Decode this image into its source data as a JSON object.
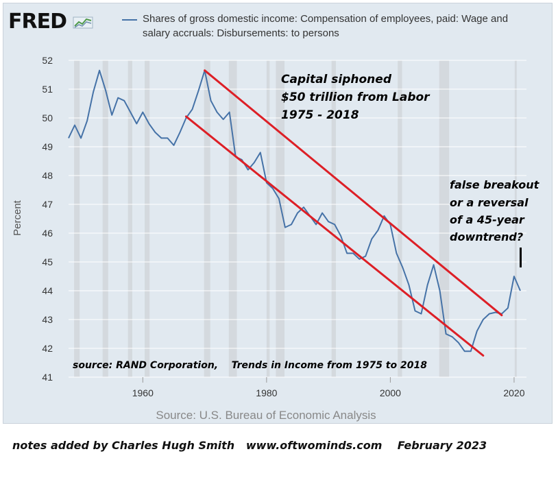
{
  "logo": {
    "text": "FRED"
  },
  "chart_data": {
    "type": "line",
    "title": "Shares of gross domestic income: Compensation of employees, paid: Wage and salary accruals: Disbursements: to persons",
    "ylabel": "Percent",
    "xlabel": "",
    "xlim": [
      1948,
      2022
    ],
    "ylim": [
      41,
      52
    ],
    "xticks": [
      1960,
      1980,
      2000,
      2020
    ],
    "yticks": [
      41,
      42,
      43,
      44,
      45,
      46,
      47,
      48,
      49,
      50,
      51,
      52
    ],
    "grid": "horizontal",
    "series_color": "#4572a7",
    "recessions": [
      [
        1948.9,
        1949.8
      ],
      [
        1953.5,
        1954.4
      ],
      [
        1957.6,
        1958.3
      ],
      [
        1960.3,
        1961.1
      ],
      [
        1969.9,
        1970.9
      ],
      [
        1973.9,
        1975.2
      ],
      [
        1980.0,
        1980.5
      ],
      [
        1981.5,
        1982.9
      ],
      [
        1990.5,
        1991.2
      ],
      [
        2001.2,
        2001.9
      ],
      [
        2007.9,
        2009.5
      ],
      [
        2020.1,
        2020.4
      ]
    ],
    "x": [
      1948,
      1949,
      1950,
      1951,
      1952,
      1953,
      1954,
      1955,
      1956,
      1957,
      1958,
      1959,
      1960,
      1961,
      1962,
      1963,
      1964,
      1965,
      1966,
      1967,
      1968,
      1969,
      1970,
      1971,
      1972,
      1973,
      1974,
      1975,
      1976,
      1977,
      1978,
      1979,
      1980,
      1981,
      1982,
      1983,
      1984,
      1985,
      1986,
      1987,
      1988,
      1989,
      1990,
      1991,
      1992,
      1993,
      1994,
      1995,
      1996,
      1997,
      1998,
      1999,
      2000,
      2001,
      2002,
      2003,
      2004,
      2005,
      2006,
      2007,
      2008,
      2009,
      2010,
      2011,
      2012,
      2013,
      2014,
      2015,
      2016,
      2017,
      2018,
      2019,
      2020,
      2021
    ],
    "values": [
      49.3,
      49.75,
      49.3,
      49.9,
      50.9,
      51.65,
      50.95,
      50.1,
      50.7,
      50.6,
      50.2,
      49.8,
      50.2,
      49.8,
      49.5,
      49.3,
      49.3,
      49.05,
      49.5,
      50.0,
      50.3,
      50.95,
      51.65,
      50.6,
      50.2,
      49.95,
      50.2,
      48.65,
      48.55,
      48.2,
      48.45,
      48.8,
      47.75,
      47.55,
      47.2,
      46.2,
      46.3,
      46.7,
      46.9,
      46.6,
      46.3,
      46.7,
      46.4,
      46.3,
      45.9,
      45.3,
      45.3,
      45.1,
      45.2,
      45.8,
      46.1,
      46.6,
      46.3,
      45.3,
      44.8,
      44.2,
      43.3,
      43.2,
      44.2,
      44.9,
      44.0,
      42.5,
      42.4,
      42.2,
      41.9,
      41.9,
      42.6,
      43.0,
      43.2,
      43.25,
      43.2,
      43.4,
      44.5,
      44.0
    ],
    "trendlines": [
      {
        "color": "#dd1f26",
        "from": [
          1970,
          51.65
        ],
        "to": [
          2018,
          43.15
        ]
      },
      {
        "color": "#dd1f26",
        "from": [
          1967,
          50.05
        ],
        "to": [
          2015,
          41.75
        ]
      }
    ],
    "annotations": {
      "capital": [
        "Capital siphoned",
        "$50 trillion from Labor",
        "1975 - 2018"
      ],
      "breakout": [
        "false breakout",
        "or a reversal",
        "of a 45-year",
        "downtrend?"
      ],
      "rand": "source: RAND Corporation,    Trends in Income from 1975 to 2018"
    },
    "source": "Source: U.S. Bureau of Economic Analysis"
  },
  "notes": "notes added by Charles Hugh Smith   www.oftwominds.com    February 2023"
}
